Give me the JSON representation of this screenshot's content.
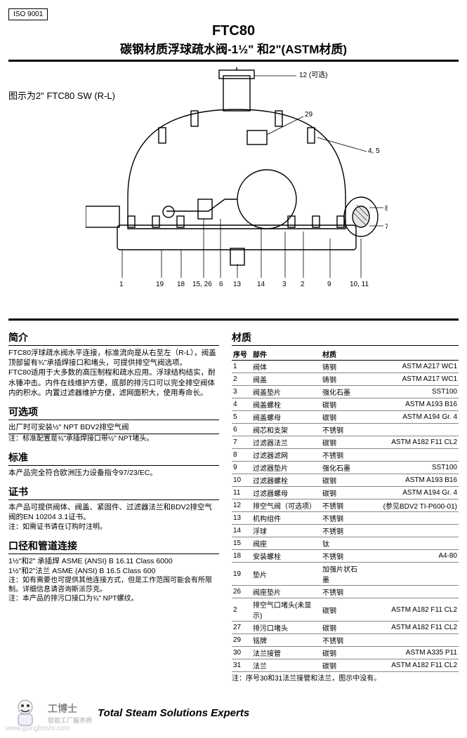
{
  "iso": "ISO 9001",
  "title": {
    "model": "FTC80",
    "sub": "碳钢材质浮球疏水阀-1½\" 和2\"(ASTM材质)"
  },
  "figure": {
    "caption": "图示为2\" FTC80 SW (R-L)"
  },
  "callouts": {
    "top": "12 (可选)",
    "top_right": "29",
    "right_upper": "4, 5",
    "right_mid": "8",
    "right_low": "7",
    "bottom": [
      "1",
      "19",
      "18",
      "15, 26",
      "6",
      "13",
      "14",
      "3",
      "2",
      "9",
      "10, 11"
    ]
  },
  "sections": {
    "intro": {
      "title": "简介",
      "paras": [
        "FTC80浮球疏水阀水平连接，标准流向是从右至左（R-L），阀盖顶部留有¾\"承插焊接口和堵头，可提供排空气阀选项。",
        "FTC80适用于大多数的高压制程和疏水应用。浮球结构结实，耐水锤冲击。内件在线维护方便，底部的排污口可以完全排空阀体内的积水。内置过滤器维护方便，滤网面积大，使用寿命长。"
      ]
    },
    "options": {
      "title": "可选项",
      "line": "出厂时可安装½\" NPT BDV2排空气阀",
      "note": "注：标准配置是¾\"承插焊接口带½\" NPT堵头。"
    },
    "standard": {
      "title": "标准",
      "text": "本产品完全符合欧洲压力设备指令97/23/EC。"
    },
    "cert": {
      "title": "证书",
      "text": "本产品可提供阀体、阀盖、紧固件、过滤器法兰和BDV2排空气阀的EN 10204 3.1证书。",
      "note": "注：如需证书请在订购时注明。"
    },
    "conn": {
      "title": "口径和管道连接",
      "lines": [
        "1½\"和2\" 承插焊 ASME (ANSI) B 16.11 Class 6000",
        "1½\"和2\"法兰 ASME (ANSI) B 16.5 Class 600"
      ],
      "notes": [
        "注：如有需要也可提供其他连接方式，但是工作范围可能会有所限制。详细信息请咨询斯派莎克。",
        "注：本产品的排污口接口为¾\" NPT螺纹。"
      ]
    }
  },
  "materials": {
    "title": "材质",
    "headers": [
      "序号",
      "部件",
      "",
      "材质"
    ],
    "rows": [
      [
        "1",
        "阀体",
        "铸钢",
        "ASTM A217 WC1"
      ],
      [
        "2",
        "阀盖",
        "铸钢",
        "ASTM A217 WC1"
      ],
      [
        "3",
        "阀盖垫片",
        "强化石墨",
        "SST100"
      ],
      [
        "4",
        "阀盖螺栓",
        "碳钢",
        "ASTM A193 B16"
      ],
      [
        "5",
        "阀盖螺母",
        "碳钢",
        "ASTM A194 Gr. 4"
      ],
      [
        "6",
        "阀芯和支架",
        "不锈钢",
        ""
      ],
      [
        "7",
        "过滤器法兰",
        "碳钢",
        "ASTM A182 F11 CL2"
      ],
      [
        "8",
        "过滤器滤网",
        "不锈钢",
        ""
      ],
      [
        "9",
        "过滤器垫片",
        "强化石墨",
        "SST100"
      ],
      [
        "10",
        "过滤器螺栓",
        "碳钢",
        "ASTM A193 B16"
      ],
      [
        "11",
        "过滤器螺母",
        "碳钢",
        "ASTM A194 Gr. 4"
      ],
      [
        "12",
        "排空气阀（可选项）",
        "不锈钢",
        "(参见BDV2 TI-P600-01)"
      ],
      [
        "13",
        "机构组件",
        "不锈钢",
        ""
      ],
      [
        "14",
        "浮球",
        "不锈钢",
        ""
      ],
      [
        "15",
        "阀座",
        "钛",
        ""
      ],
      [
        "18",
        "安装螺栓",
        "不锈钢",
        "A4-80"
      ],
      [
        "19",
        "垫片",
        "加强片状石墨",
        ""
      ],
      [
        "26",
        "阀座垫片",
        "不锈钢",
        ""
      ],
      [
        "2",
        "排空气口堵头(未显示)",
        "碳钢",
        "ASTM A182 F11 CL2"
      ],
      [
        "27",
        "排污口堵头",
        "碳钢",
        "ASTM A182 F11 CL2"
      ],
      [
        "29",
        "铭牌",
        "不锈钢",
        ""
      ],
      [
        "30",
        "法兰接管",
        "碳钢",
        "ASTM A335 P11"
      ],
      [
        "31",
        "法兰",
        "碳钢",
        "ASTM A182 F11 CL2"
      ]
    ],
    "note": "注：序号30和31法兰接管和法兰，图示中没有。"
  },
  "footer": {
    "brand_cn": "工博士",
    "brand_sub": "智能工厂服务商",
    "tagline": "Total Steam Solutions Experts",
    "watermark": "www.gongboshi.com"
  },
  "style": {
    "page_bg": "#ffffff",
    "text_color": "#000000",
    "line_color": "#000000",
    "diagram_stroke": "#000000"
  }
}
